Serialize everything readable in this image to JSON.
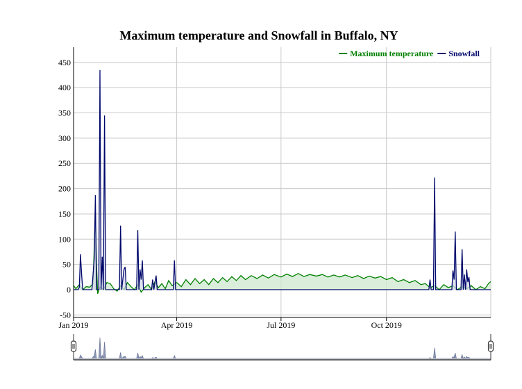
{
  "chart_data": {
    "type": "area",
    "title": "Maximum temperature and Snowfall in Buffalo, NY",
    "xlabel": "",
    "ylabel": "",
    "ylim": [
      -55,
      480
    ],
    "xlim": [
      "2019-01-01",
      "2019-12-31"
    ],
    "y_ticks": [
      -50,
      0,
      50,
      100,
      150,
      200,
      250,
      300,
      350,
      400,
      450
    ],
    "x_ticks": [
      {
        "date": "2019-01-01",
        "label": "Jan 2019"
      },
      {
        "date": "2019-04-01",
        "label": "Apr 2019"
      },
      {
        "date": "2019-07-01",
        "label": "Jul 2019"
      },
      {
        "date": "2019-10-01",
        "label": "Oct 2019"
      }
    ],
    "grid": true,
    "legend_position": "top-right",
    "range_selector": true,
    "series": [
      {
        "name": "Maximum temperature",
        "color": "#008000",
        "fill": "#cfe8cf",
        "points": [
          [
            "2019-01-01",
            8
          ],
          [
            "2019-01-03",
            2
          ],
          [
            "2019-01-06",
            10
          ],
          [
            "2019-01-09",
            0
          ],
          [
            "2019-01-12",
            6
          ],
          [
            "2019-01-15",
            5
          ],
          [
            "2019-01-18",
            12
          ],
          [
            "2019-01-20",
            155
          ],
          [
            "2019-01-21",
            50
          ],
          [
            "2019-01-22",
            -8
          ],
          [
            "2019-01-24",
            5
          ],
          [
            "2019-01-27",
            0
          ],
          [
            "2019-01-30",
            14
          ],
          [
            "2019-02-02",
            12
          ],
          [
            "2019-02-05",
            2
          ],
          [
            "2019-02-08",
            -3
          ],
          [
            "2019-02-11",
            8
          ],
          [
            "2019-02-14",
            0
          ],
          [
            "2019-02-17",
            14
          ],
          [
            "2019-02-20",
            6
          ],
          [
            "2019-02-23",
            0
          ],
          [
            "2019-02-26",
            10
          ],
          [
            "2019-03-01",
            -5
          ],
          [
            "2019-03-04",
            4
          ],
          [
            "2019-03-07",
            10
          ],
          [
            "2019-03-10",
            0
          ],
          [
            "2019-03-13",
            16
          ],
          [
            "2019-03-16",
            4
          ],
          [
            "2019-03-19",
            12
          ],
          [
            "2019-03-22",
            2
          ],
          [
            "2019-03-25",
            18
          ],
          [
            "2019-03-28",
            8
          ],
          [
            "2019-04-01",
            14
          ],
          [
            "2019-04-05",
            6
          ],
          [
            "2019-04-09",
            20
          ],
          [
            "2019-04-13",
            10
          ],
          [
            "2019-04-17",
            22
          ],
          [
            "2019-04-21",
            12
          ],
          [
            "2019-04-25",
            20
          ],
          [
            "2019-04-29",
            10
          ],
          [
            "2019-05-03",
            22
          ],
          [
            "2019-05-07",
            14
          ],
          [
            "2019-05-11",
            24
          ],
          [
            "2019-05-15",
            16
          ],
          [
            "2019-05-19",
            26
          ],
          [
            "2019-05-23",
            18
          ],
          [
            "2019-05-27",
            28
          ],
          [
            "2019-05-31",
            20
          ],
          [
            "2019-06-05",
            28
          ],
          [
            "2019-06-10",
            22
          ],
          [
            "2019-06-15",
            29
          ],
          [
            "2019-06-20",
            23
          ],
          [
            "2019-06-25",
            30
          ],
          [
            "2019-07-01",
            25
          ],
          [
            "2019-07-06",
            31
          ],
          [
            "2019-07-11",
            26
          ],
          [
            "2019-07-16",
            32
          ],
          [
            "2019-07-21",
            26
          ],
          [
            "2019-07-26",
            30
          ],
          [
            "2019-08-01",
            27
          ],
          [
            "2019-08-06",
            30
          ],
          [
            "2019-08-11",
            25
          ],
          [
            "2019-08-16",
            29
          ],
          [
            "2019-08-21",
            25
          ],
          [
            "2019-08-26",
            29
          ],
          [
            "2019-09-01",
            24
          ],
          [
            "2019-09-06",
            28
          ],
          [
            "2019-09-11",
            22
          ],
          [
            "2019-09-16",
            27
          ],
          [
            "2019-09-21",
            23
          ],
          [
            "2019-09-26",
            26
          ],
          [
            "2019-10-01",
            20
          ],
          [
            "2019-10-06",
            24
          ],
          [
            "2019-10-11",
            16
          ],
          [
            "2019-10-16",
            20
          ],
          [
            "2019-10-21",
            14
          ],
          [
            "2019-10-26",
            18
          ],
          [
            "2019-10-31",
            10
          ],
          [
            "2019-11-04",
            12
          ],
          [
            "2019-11-08",
            4
          ],
          [
            "2019-11-12",
            8
          ],
          [
            "2019-11-16",
            0
          ],
          [
            "2019-11-20",
            10
          ],
          [
            "2019-11-24",
            4
          ],
          [
            "2019-11-28",
            8
          ],
          [
            "2019-12-02",
            0
          ],
          [
            "2019-12-06",
            6
          ],
          [
            "2019-12-10",
            2
          ],
          [
            "2019-12-14",
            8
          ],
          [
            "2019-12-18",
            0
          ],
          [
            "2019-12-22",
            6
          ],
          [
            "2019-12-26",
            2
          ],
          [
            "2019-12-29",
            12
          ],
          [
            "2019-12-31",
            16
          ]
        ]
      },
      {
        "name": "Snowfall",
        "color": "#00086b",
        "fill": "#d6d9ea",
        "points": [
          [
            "2019-01-01",
            0
          ],
          [
            "2019-01-05",
            0
          ],
          [
            "2019-01-06",
            5
          ],
          [
            "2019-01-07",
            70
          ],
          [
            "2019-01-08",
            30
          ],
          [
            "2019-01-09",
            0
          ],
          [
            "2019-01-17",
            0
          ],
          [
            "2019-01-19",
            60
          ],
          [
            "2019-01-20",
            187
          ],
          [
            "2019-01-21",
            0
          ],
          [
            "2019-01-23",
            0
          ],
          [
            "2019-01-24",
            435
          ],
          [
            "2019-01-25",
            0
          ],
          [
            "2019-01-26",
            65
          ],
          [
            "2019-01-27",
            0
          ],
          [
            "2019-01-28",
            345
          ],
          [
            "2019-01-29",
            0
          ],
          [
            "2019-02-10",
            0
          ],
          [
            "2019-02-11",
            127
          ],
          [
            "2019-02-12",
            0
          ],
          [
            "2019-02-14",
            40
          ],
          [
            "2019-02-15",
            45
          ],
          [
            "2019-02-16",
            0
          ],
          [
            "2019-02-25",
            0
          ],
          [
            "2019-02-26",
            118
          ],
          [
            "2019-02-27",
            0
          ],
          [
            "2019-02-28",
            40
          ],
          [
            "2019-03-01",
            20
          ],
          [
            "2019-03-02",
            58
          ],
          [
            "2019-03-03",
            0
          ],
          [
            "2019-03-10",
            0
          ],
          [
            "2019-03-11",
            20
          ],
          [
            "2019-03-12",
            0
          ],
          [
            "2019-03-14",
            28
          ],
          [
            "2019-03-15",
            0
          ],
          [
            "2019-03-29",
            0
          ],
          [
            "2019-03-30",
            58
          ],
          [
            "2019-03-31",
            0
          ],
          [
            "2019-10-01",
            0
          ],
          [
            "2019-11-07",
            0
          ],
          [
            "2019-11-08",
            20
          ],
          [
            "2019-11-09",
            0
          ],
          [
            "2019-11-11",
            0
          ],
          [
            "2019-11-12",
            222
          ],
          [
            "2019-11-13",
            0
          ],
          [
            "2019-11-27",
            0
          ],
          [
            "2019-11-28",
            38
          ],
          [
            "2019-11-29",
            20
          ],
          [
            "2019-11-30",
            115
          ],
          [
            "2019-12-01",
            0
          ],
          [
            "2019-12-05",
            0
          ],
          [
            "2019-12-06",
            80
          ],
          [
            "2019-12-07",
            0
          ],
          [
            "2019-12-08",
            30
          ],
          [
            "2019-12-09",
            0
          ],
          [
            "2019-12-10",
            40
          ],
          [
            "2019-12-11",
            15
          ],
          [
            "2019-12-12",
            25
          ],
          [
            "2019-12-13",
            0
          ],
          [
            "2019-12-31",
            0
          ]
        ]
      }
    ]
  }
}
